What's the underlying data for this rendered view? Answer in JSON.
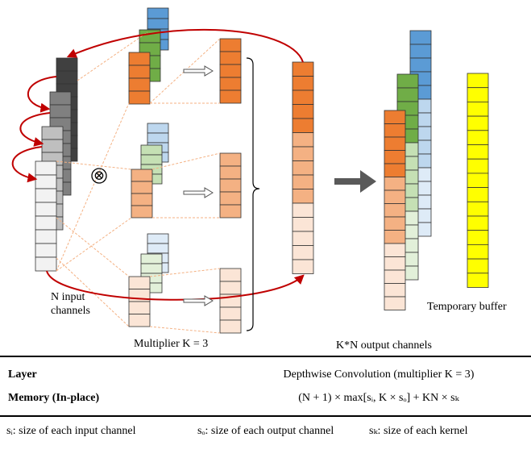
{
  "labels": {
    "input": [
      "N input",
      "channels"
    ],
    "multiplier": "Multiplier K = 3",
    "output": "K*N output channels",
    "buffer": "Temporary buffer",
    "operator": "⊗"
  },
  "table": {
    "rows": [
      [
        "Layer",
        "Depthwise Convolution (multiplier K = 3)"
      ],
      [
        "Memory (In-place)",
        "(N + 1) × max[sᵢ, K × sₒ] + KN × sₖ"
      ]
    ]
  },
  "footnotes": [
    "sᵢ: size of each input channel",
    "sₒ: size of each output channel",
    "sₖ: size of each kernel"
  ]
}
